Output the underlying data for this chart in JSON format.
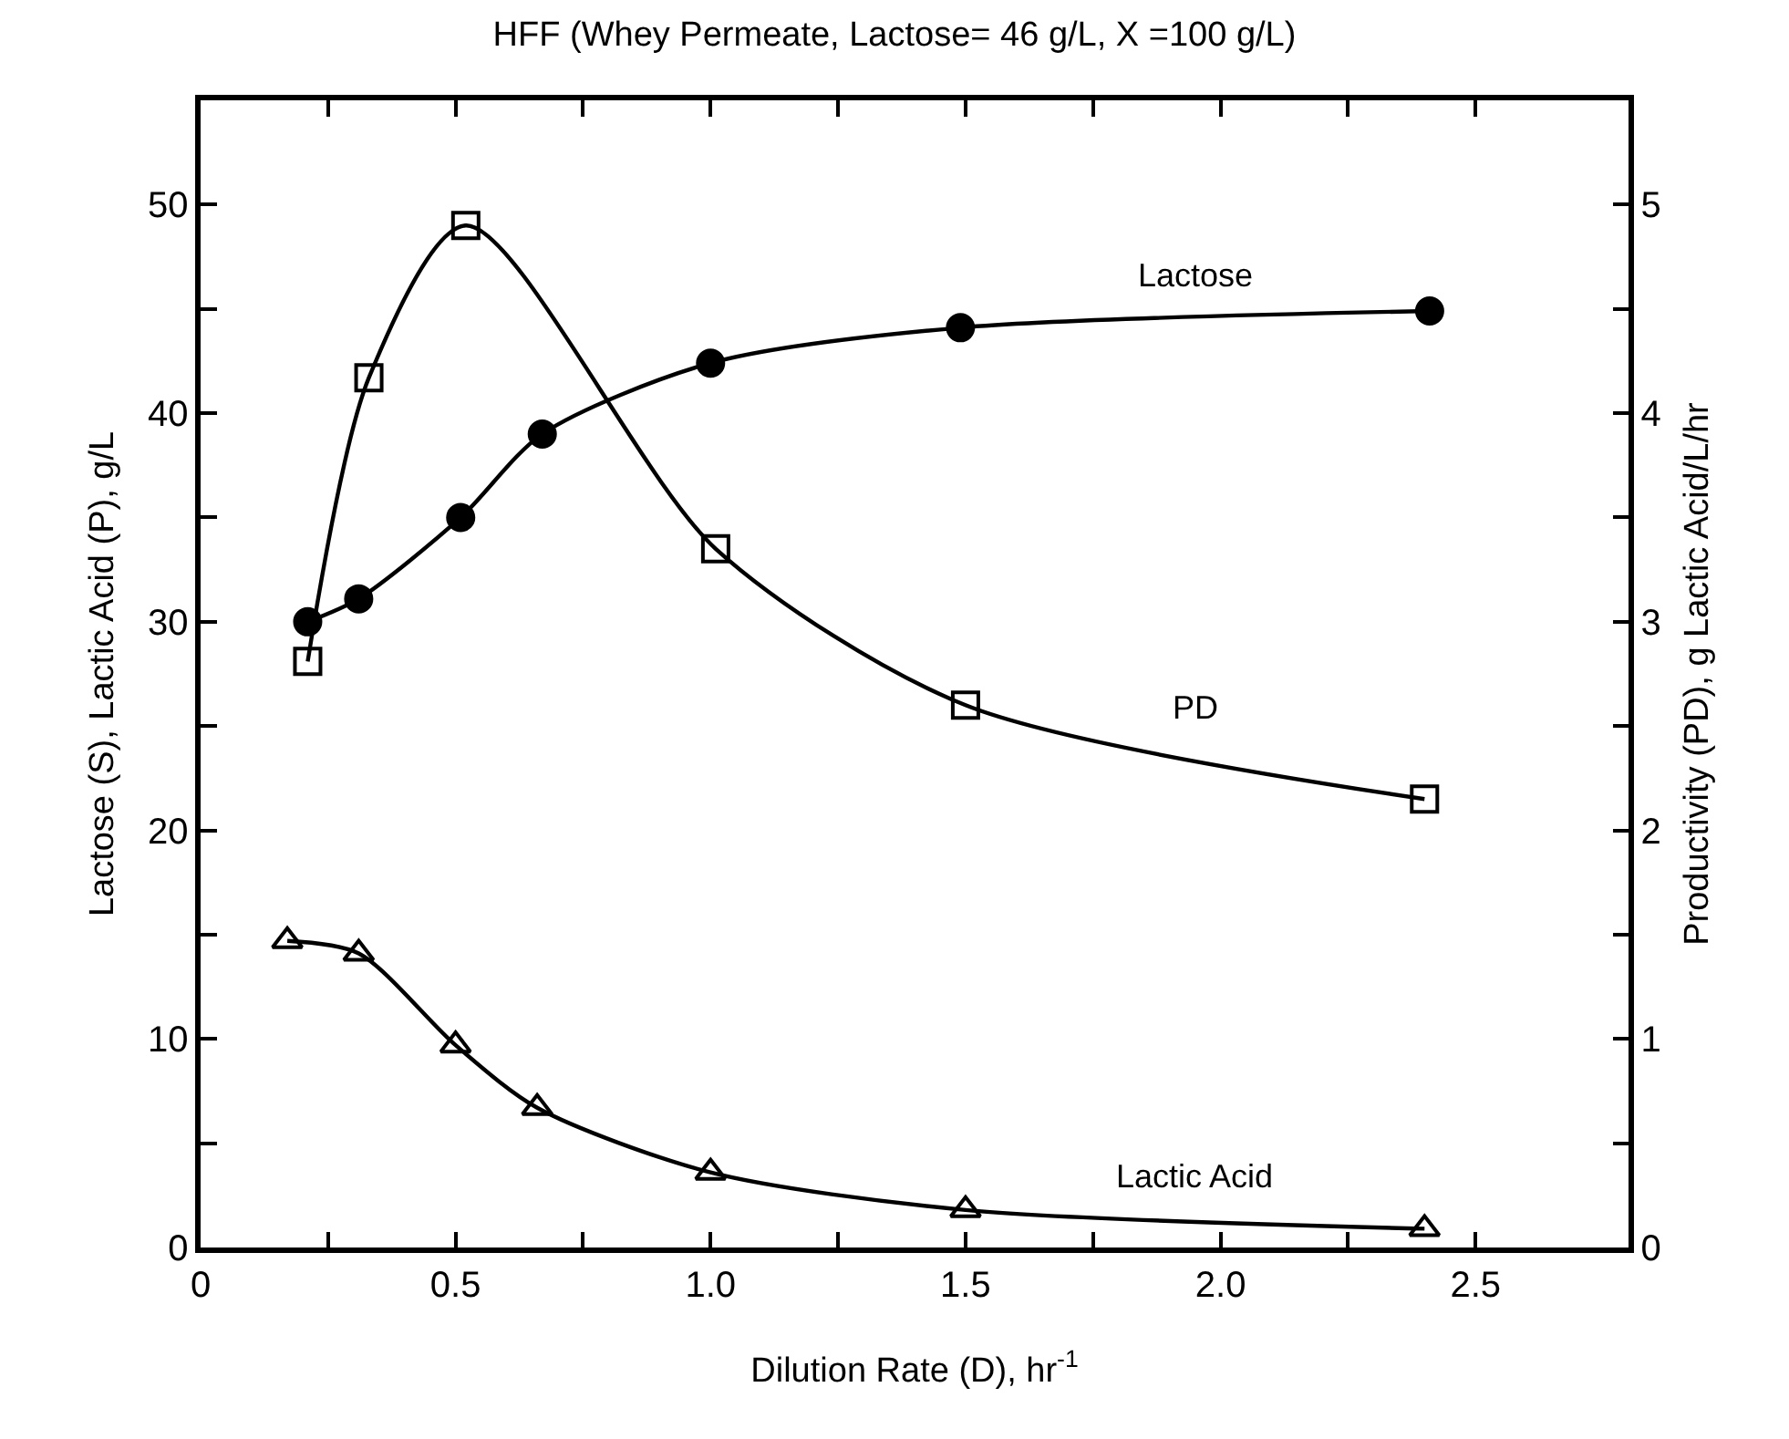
{
  "chart_data": {
    "type": "line",
    "title": "HFF (Whey Permeate, Lactose= 46 g/L, X =100 g/L)",
    "xlabel": "Dilution Rate (D), hr$^{-1}$",
    "ylabel": "Lactose (S), Lactic Acid (P), g/L",
    "y2label": "Productivity (PD), g Lactic Acid/L/hr",
    "xlim": [
      0,
      2.8
    ],
    "xticks": [
      0,
      {
        "value": 0.25,
        "label": null
      },
      {
        "value": 0.5,
        "label": "0.5"
      },
      {
        "value": 0.75,
        "label": null
      },
      {
        "value": 1.0,
        "label": "1.0"
      },
      {
        "value": 1.25,
        "label": null
      },
      {
        "value": 1.5,
        "label": "1.5"
      },
      {
        "value": 1.75,
        "label": null
      },
      {
        "value": 2.0,
        "label": "2.0"
      },
      {
        "value": 2.25,
        "label": null
      },
      {
        "value": 2.5,
        "label": "2.5"
      }
    ],
    "ylim": [
      0,
      55
    ],
    "yticks": [
      0,
      {
        "value": 5,
        "label": null
      },
      10,
      {
        "value": 15,
        "label": null
      },
      20,
      {
        "value": 25,
        "label": null
      },
      30,
      {
        "value": 35,
        "label": null
      },
      40,
      {
        "value": 45,
        "label": null
      },
      50
    ],
    "y2lim": [
      0,
      5.5
    ],
    "y2ticks": [
      0,
      {
        "value": 0.5,
        "label": null
      },
      1,
      {
        "value": 1.5,
        "label": null
      },
      2,
      {
        "value": 2.5,
        "label": null
      },
      3,
      {
        "value": 3.5,
        "label": null
      },
      4,
      {
        "value": 4.5,
        "label": null
      },
      5
    ],
    "line_style": "solid",
    "series": [
      {
        "name": "Lactose",
        "color": "#000000",
        "marker": "circle",
        "x": [
          0.21,
          0.31,
          0.51,
          0.67,
          1.0,
          1.49,
          2.41
        ],
        "values": [
          30.0,
          31.1,
          35.0,
          39.0,
          42.4,
          44.1,
          44.9
        ]
      },
      {
        "name": "PD",
        "color": "#000000",
        "marker": "square",
        "axis": "y2",
        "x": [
          0.21,
          0.33,
          0.52,
          1.01,
          1.5,
          2.4
        ],
        "values": [
          2.81,
          4.17,
          4.9,
          3.35,
          2.6,
          2.15
        ]
      },
      {
        "name": "Lactic Acid",
        "color": "#000000",
        "marker": "triangle",
        "x": [
          0.17,
          0.31,
          0.5,
          0.66,
          1.0,
          1.5,
          2.4
        ],
        "values": [
          14.7,
          14.1,
          9.7,
          6.7,
          3.6,
          1.8,
          0.9
        ]
      }
    ]
  }
}
